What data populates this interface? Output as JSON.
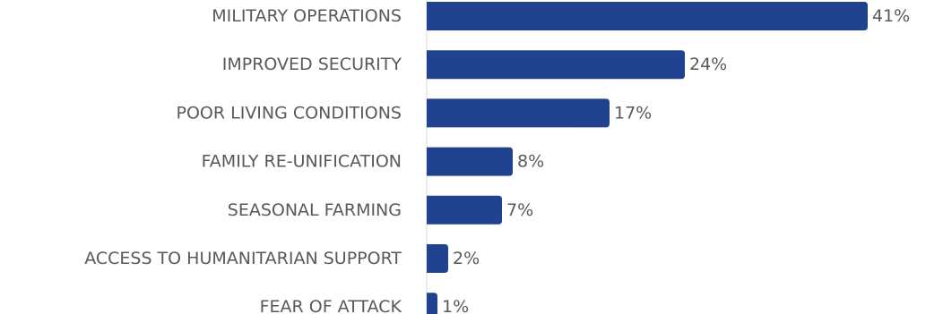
{
  "chart_data": {
    "type": "bar",
    "orientation": "horizontal",
    "categories": [
      "MILITARY OPERATIONS",
      "IMPROVED SECURITY",
      "POOR LIVING CONDITIONS",
      "FAMILY RE-UNIFICATION",
      "SEASONAL FARMING",
      "ACCESS TO HUMANITARIAN SUPPORT",
      "FEAR OF ATTACK"
    ],
    "values": [
      41,
      24,
      17,
      8,
      7,
      2,
      1
    ],
    "value_labels": [
      "41%",
      "24%",
      "17%",
      "8%",
      "7%",
      "2%",
      "1%"
    ],
    "unit": "%",
    "xlim": [
      0,
      43
    ],
    "grid": false,
    "legend": "none",
    "bar_color": "#21428F",
    "axis_color": "#D9D9D9",
    "label_color": "#595959"
  }
}
